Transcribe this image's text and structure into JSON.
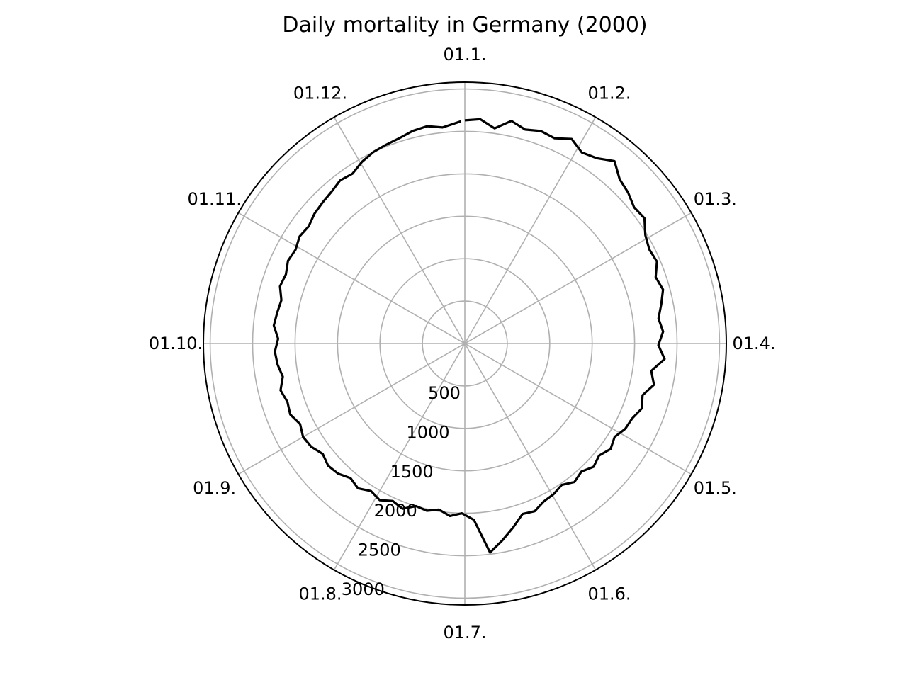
{
  "chart_data": {
    "type": "line",
    "projection": "polar",
    "title": "Daily mortality in Germany (2000)",
    "direction": "clockwise",
    "zero_location": "top",
    "angular_ticks": [
      "01.1.",
      "01.2.",
      "01.3.",
      "01.4.",
      "01.5.",
      "01.6.",
      "01.7.",
      "01.8.",
      "01.9.",
      "01.10.",
      "01.11.",
      "01.12."
    ],
    "radial_ticks": [
      500,
      1000,
      1500,
      2000,
      2500,
      3000
    ],
    "radial_tick_labels": [
      "500",
      "1000",
      "1500",
      "2000",
      "2500",
      "3000"
    ],
    "rlim": [
      0,
      3080
    ],
    "grid": true,
    "series_color": "#000000",
    "grid_color": "#b0b0b0",
    "x_unit": "day of year",
    "x": [
      1,
      5,
      9,
      13,
      17,
      21,
      25,
      29,
      33,
      37,
      41,
      45,
      49,
      53,
      57,
      61,
      65,
      69,
      73,
      77,
      81,
      85,
      89,
      93,
      97,
      101,
      105,
      109,
      113,
      117,
      121,
      125,
      129,
      133,
      137,
      141,
      145,
      149,
      153,
      157,
      161,
      165,
      169,
      173,
      177,
      181,
      185,
      189,
      193,
      197,
      201,
      205,
      209,
      213,
      217,
      221,
      225,
      229,
      233,
      237,
      241,
      245,
      249,
      253,
      257,
      261,
      265,
      269,
      273,
      277,
      281,
      285,
      289,
      293,
      297,
      301,
      305,
      309,
      313,
      317,
      321,
      325,
      329,
      333,
      337,
      341,
      345,
      349,
      353,
      357,
      361,
      366
    ],
    "y": [
      2630,
      2650,
      2560,
      2680,
      2620,
      2660,
      2640,
      2720,
      2640,
      2680,
      2780,
      2660,
      2620,
      2560,
      2580,
      2480,
      2440,
      2460,
      2380,
      2420,
      2360,
      2300,
      2340,
      2280,
      2360,
      2220,
      2280,
      2180,
      2220,
      2160,
      2140,
      2080,
      2120,
      2060,
      2100,
      2040,
      2080,
      2020,
      2060,
      2080,
      2140,
      2120,
      2240,
      2360,
      2480,
      2080,
      2000,
      2040,
      1980,
      2020,
      2000,
      2080,
      2040,
      2100,
      2060,
      2120,
      2080,
      2140,
      2160,
      2120,
      2180,
      2200,
      2160,
      2220,
      2200,
      2240,
      2180,
      2220,
      2240,
      2200,
      2260,
      2240,
      2220,
      2280,
      2260,
      2300,
      2280,
      2320,
      2300,
      2340,
      2360,
      2380,
      2420,
      2400,
      2460,
      2500,
      2520,
      2540,
      2580,
      2600,
      2560,
      2620
    ]
  }
}
